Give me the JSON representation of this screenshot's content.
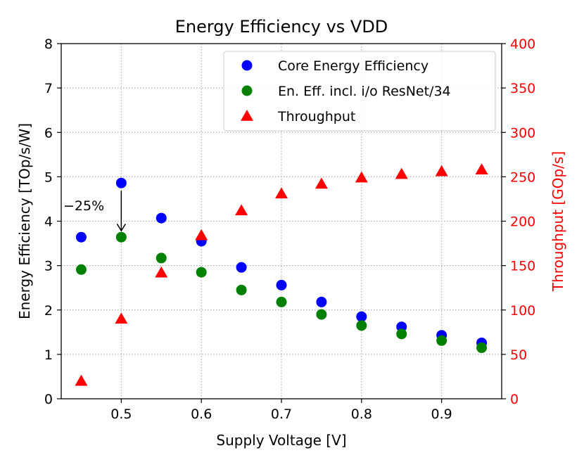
{
  "chart_data": {
    "type": "scatter",
    "title": "Energy Efficiency vs VDD",
    "xlabel": "Supply Voltage [V]",
    "ylabel_left": "Energy Efficiency [TOp/s/W]",
    "ylabel_right": "Throughput [GOp/s]",
    "xlim": [
      0.425,
      0.975
    ],
    "ylim_left": [
      0,
      8
    ],
    "ylim_right": [
      0,
      400
    ],
    "x_ticks": [
      0.5,
      0.6,
      0.7,
      0.8,
      0.9
    ],
    "x_tick_labels": [
      "0.5",
      "0.6",
      "0.7",
      "0.8",
      "0.9"
    ],
    "y_left_ticks": [
      0,
      1,
      2,
      3,
      4,
      5,
      6,
      7,
      8
    ],
    "y_left_tick_labels": [
      "0",
      "1",
      "2",
      "3",
      "4",
      "5",
      "6",
      "7",
      "8"
    ],
    "y_right_ticks": [
      0,
      50,
      100,
      150,
      200,
      250,
      300,
      350,
      400
    ],
    "y_right_tick_labels": [
      "0",
      "50",
      "100",
      "150",
      "200",
      "250",
      "300",
      "350",
      "400"
    ],
    "grid": true,
    "legend_position": "top-right",
    "series": [
      {
        "name": "Core Energy Efficiency",
        "axis": "left",
        "marker": "circle",
        "color": "#0000ff",
        "x": [
          0.45,
          0.5,
          0.55,
          0.6,
          0.65,
          0.7,
          0.75,
          0.8,
          0.85,
          0.9,
          0.95
        ],
        "y": [
          3.64,
          4.86,
          4.07,
          3.55,
          2.96,
          2.56,
          2.18,
          1.85,
          1.62,
          1.43,
          1.26
        ]
      },
      {
        "name": "En. Eff. incl. i/o ResNet/34",
        "axis": "left",
        "marker": "circle",
        "color": "#008000",
        "x": [
          0.45,
          0.5,
          0.55,
          0.6,
          0.65,
          0.7,
          0.75,
          0.8,
          0.85,
          0.9,
          0.95
        ],
        "y": [
          2.91,
          3.64,
          3.17,
          2.85,
          2.45,
          2.18,
          1.9,
          1.65,
          1.46,
          1.31,
          1.15
        ]
      },
      {
        "name": "Throughput",
        "axis": "right",
        "marker": "triangle",
        "color": "#ff0000",
        "x": [
          0.45,
          0.5,
          0.55,
          0.6,
          0.65,
          0.7,
          0.75,
          0.8,
          0.85,
          0.9,
          0.95
        ],
        "y": [
          20,
          90,
          142,
          184,
          212,
          231,
          242,
          249,
          253,
          256,
          258
        ]
      }
    ],
    "annotation": {
      "text": "−25%",
      "arrow_from": [
        0.5,
        4.86
      ],
      "arrow_to": [
        0.5,
        3.64
      ]
    },
    "colors": {
      "right_axis": "#ff0000",
      "grid": "#b0b0b0"
    }
  }
}
